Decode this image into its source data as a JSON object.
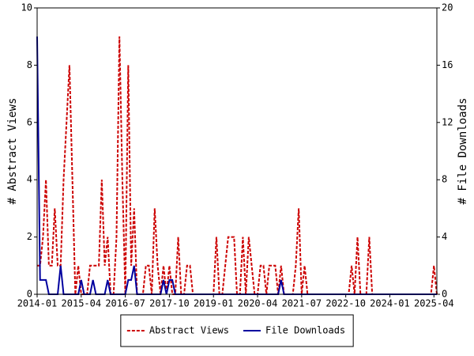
{
  "chart_data": {
    "type": "line",
    "y_label": "# Abstract Views",
    "y2_label": "# File Downloads",
    "x": [
      "2014-01",
      "2014-02",
      "2014-03",
      "2014-04",
      "2014-05",
      "2014-06",
      "2014-07",
      "2014-08",
      "2014-09",
      "2014-10",
      "2014-11",
      "2014-12",
      "2015-01",
      "2015-02",
      "2015-03",
      "2015-04",
      "2015-05",
      "2015-06",
      "2015-07",
      "2015-08",
      "2015-09",
      "2015-10",
      "2015-11",
      "2015-12",
      "2016-01",
      "2016-02",
      "2016-03",
      "2016-04",
      "2016-05",
      "2016-06",
      "2016-07",
      "2016-08",
      "2016-09",
      "2016-10",
      "2016-11",
      "2016-12",
      "2017-01",
      "2017-02",
      "2017-03",
      "2017-04",
      "2017-05",
      "2017-06",
      "2017-07",
      "2017-08",
      "2017-09",
      "2017-10",
      "2017-11",
      "2017-12",
      "2018-01",
      "2018-02",
      "2018-03",
      "2018-04",
      "2018-05",
      "2018-06",
      "2018-07",
      "2018-08",
      "2018-09",
      "2018-10",
      "2018-11",
      "2018-12",
      "2019-01",
      "2019-02",
      "2019-03",
      "2019-04",
      "2019-05",
      "2019-06",
      "2019-07",
      "2019-08",
      "2019-09",
      "2019-10",
      "2019-11",
      "2019-12",
      "2020-01",
      "2020-02",
      "2020-03",
      "2020-04",
      "2020-05",
      "2020-06",
      "2020-07",
      "2020-08",
      "2020-09",
      "2020-10",
      "2020-11",
      "2020-12",
      "2021-01",
      "2021-02",
      "2021-03",
      "2021-04",
      "2021-05",
      "2021-06",
      "2021-07",
      "2021-08",
      "2021-09",
      "2021-10",
      "2021-11",
      "2021-12",
      "2022-01",
      "2022-02",
      "2022-03",
      "2022-04",
      "2022-05",
      "2022-06",
      "2022-07",
      "2022-08",
      "2022-09",
      "2022-10",
      "2022-11",
      "2022-12",
      "2023-01",
      "2023-02",
      "2023-03",
      "2023-04",
      "2023-05",
      "2023-06",
      "2023-07",
      "2023-08",
      "2023-09",
      "2023-10",
      "2023-11",
      "2023-12",
      "2024-01",
      "2024-02",
      "2024-03",
      "2024-04",
      "2024-05",
      "2024-06",
      "2024-07",
      "2024-08",
      "2024-09",
      "2024-10",
      "2024-11",
      "2024-12",
      "2025-01",
      "2025-02",
      "2025-03",
      "2025-04",
      "2025-05"
    ],
    "xticks": [
      "2014-01",
      "2015-04",
      "2016-07",
      "2017-10",
      "2019-01",
      "2020-04",
      "2021-07",
      "2022-10",
      "2024-01",
      "2025-04"
    ],
    "ylim": [
      0,
      10
    ],
    "yticks": [
      0,
      2,
      4,
      6,
      8,
      10
    ],
    "y2lim": [
      0,
      20
    ],
    "y2ticks": [
      0,
      4,
      8,
      12,
      16,
      20
    ],
    "legend": "bottom",
    "series": [
      {
        "name": "Abstract Views",
        "color": "#cc0000",
        "dashed": true,
        "values": [
          1,
          1,
          2,
          4,
          1,
          1,
          3,
          1,
          1,
          4,
          6,
          8,
          4,
          0,
          1,
          0,
          0,
          0,
          1,
          1,
          1,
          1,
          4,
          1,
          2,
          0,
          0,
          2,
          9,
          4,
          0,
          8,
          1,
          3,
          0,
          0,
          0,
          1,
          1,
          0,
          3,
          1,
          0,
          1,
          0,
          1,
          0,
          0,
          2,
          0,
          0,
          1,
          1,
          0,
          0,
          0,
          0,
          0,
          0,
          0,
          0,
          2,
          0,
          0,
          1,
          2,
          2,
          2,
          0,
          0,
          2,
          0,
          2,
          1,
          0,
          0,
          1,
          1,
          0,
          1,
          1,
          1,
          0,
          1,
          0,
          0,
          0,
          0,
          1,
          3,
          0,
          1,
          0,
          0,
          0,
          0,
          0,
          0,
          0,
          0,
          0,
          0,
          0,
          0,
          0,
          0,
          0,
          1,
          0,
          2,
          0,
          0,
          0,
          2,
          0,
          0,
          0,
          0,
          0,
          0,
          0,
          0,
          0,
          0,
          0,
          0,
          0,
          0,
          0,
          0,
          0,
          0,
          0,
          0,
          0,
          1,
          0
        ]
      },
      {
        "name": "File Downloads",
        "color": "#00009f",
        "dashed": false,
        "axis": "y2",
        "values": [
          18,
          1,
          1,
          1,
          0,
          0,
          0,
          0,
          2,
          0,
          0,
          0,
          0,
          0,
          0,
          1,
          0,
          0,
          0,
          1,
          0,
          0,
          0,
          0,
          1,
          0,
          0,
          0,
          0,
          0,
          0,
          1,
          1,
          2,
          0,
          0,
          0,
          0,
          0,
          0,
          0,
          0,
          0,
          1,
          0,
          1,
          1,
          0,
          0,
          0,
          0,
          0,
          0,
          0,
          0,
          0,
          0,
          0,
          0,
          0,
          0,
          0,
          0,
          0,
          0,
          0,
          0,
          0,
          0,
          0,
          0,
          0,
          0,
          0,
          0,
          0,
          0,
          0,
          0,
          0,
          0,
          0,
          0,
          1,
          0,
          0,
          0,
          0,
          0,
          0,
          0,
          0,
          0,
          0,
          0,
          0,
          0,
          0,
          0,
          0,
          0,
          0,
          0,
          0,
          0,
          0,
          0,
          0,
          0,
          0,
          0,
          0,
          0,
          0,
          0,
          0,
          0,
          0,
          0,
          0,
          0,
          0,
          0,
          0,
          0,
          0,
          0,
          0,
          0,
          0,
          0,
          0,
          0,
          0,
          0,
          0,
          0
        ]
      }
    ]
  }
}
